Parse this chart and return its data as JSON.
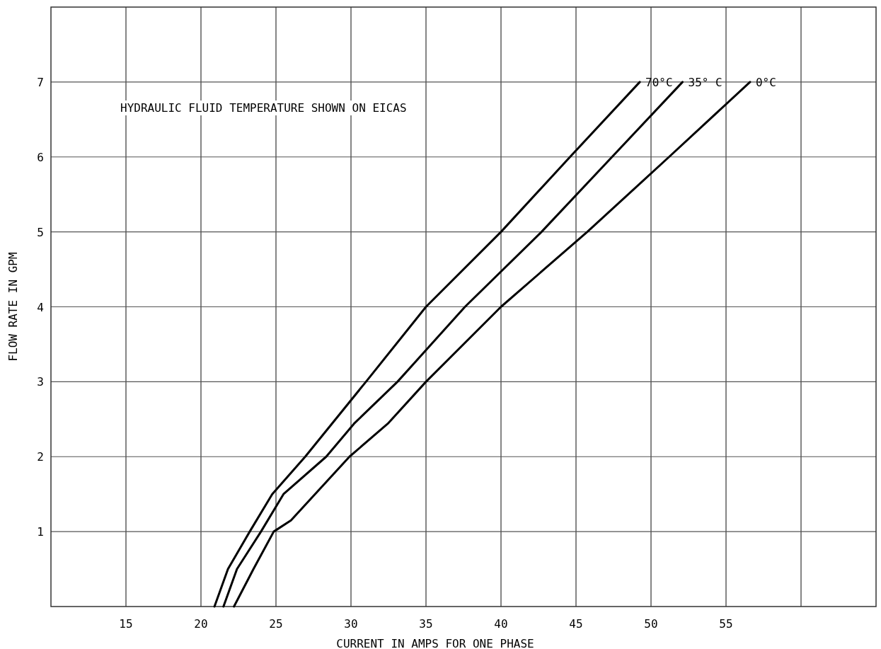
{
  "chart_data": {
    "type": "line",
    "xlabel": "CURRENT IN AMPS FOR ONE PHASE",
    "ylabel": "FLOW RATE IN GPM",
    "annotations": [
      "HYDRAULIC FLUID TEMPERATURE SHOWN ON EICAS"
    ],
    "xlim": [
      10,
      65
    ],
    "xticks": [
      15,
      20,
      25,
      30,
      35,
      40,
      45,
      50,
      55,
      {
        "value": 60,
        "label": null
      }
    ],
    "ylim": [
      0,
      8
    ],
    "yticks": [
      1,
      2,
      3,
      4,
      5,
      6,
      7
    ],
    "grid": true,
    "legend": false,
    "marker": "none",
    "line_style": "solid",
    "series": [
      {
        "name": "70°C",
        "color": "#000000",
        "x": [
          20.9,
          21.8,
          23.25,
          24.75,
          26.95,
          31.0,
          35.0,
          40.0,
          44.6,
          49.25
        ],
        "values": [
          0,
          0.5,
          1,
          1.5,
          2,
          3,
          4,
          5,
          6,
          7
        ]
      },
      {
        "name": "35° C",
        "color": "#000000",
        "x": [
          21.5,
          22.4,
          24.0,
          25.5,
          28.35,
          30.2,
          33.1,
          37.6,
          42.7,
          47.4,
          52.1
        ],
        "values": [
          0,
          0.5,
          1,
          1.5,
          2,
          2.44,
          3,
          4,
          5,
          6,
          7
        ]
      },
      {
        "name": "0°C",
        "color": "#000000",
        "x": [
          22.2,
          23.5,
          24.85,
          26.0,
          29.9,
          32.45,
          35.0,
          40.0,
          45.75,
          51.2,
          56.6
        ],
        "values": [
          0,
          0.5,
          1,
          1.15,
          2,
          2.44,
          3,
          4,
          5,
          6,
          7
        ]
      }
    ]
  }
}
